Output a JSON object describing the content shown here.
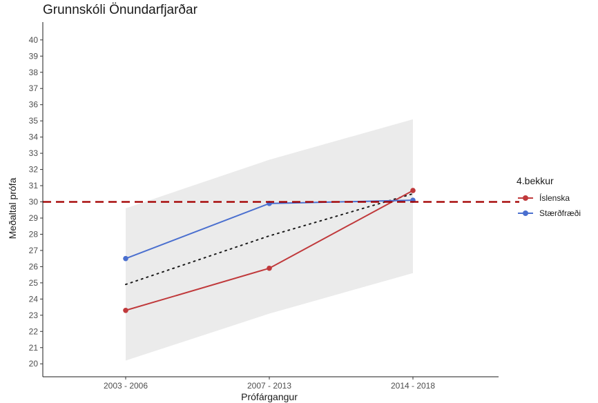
{
  "chart_data": {
    "type": "line",
    "title": "Grunnskóli Önundarfjarðar",
    "xlabel": "Prófárgangur",
    "ylabel": "Meðaltal prófa",
    "categories": [
      "2003 - 2006",
      "2007 - 2013",
      "2014 - 2018"
    ],
    "y_ticks": [
      "20",
      "21",
      "22",
      "23",
      "24",
      "25",
      "26",
      "27",
      "28",
      "29",
      "30",
      "31",
      "32",
      "33",
      "34",
      "35",
      "36",
      "37",
      "38",
      "39",
      "40"
    ],
    "ylim": [
      19.2,
      41.1
    ],
    "legend_title": "4.bekkur",
    "legend_position": "right",
    "grid": false,
    "series": [
      {
        "name": "Íslenska",
        "values": [
          23.3,
          25.9,
          30.7
        ],
        "color": "#c0393b"
      },
      {
        "name": "Stærðfræði",
        "values": [
          26.5,
          29.9,
          30.1
        ],
        "color": "#4a6fcf"
      }
    ],
    "trend": {
      "style": "dotted",
      "color": "#1a1a1a",
      "values": [
        24.9,
        27.9,
        30.5
      ]
    },
    "confidence_band": {
      "color": "#ebebeb",
      "lower": [
        20.2,
        23.1,
        25.6
      ],
      "upper": [
        29.6,
        32.6,
        35.1
      ]
    },
    "reference_line": {
      "y": 30,
      "style": "dashed",
      "color": "#a40000"
    }
  }
}
